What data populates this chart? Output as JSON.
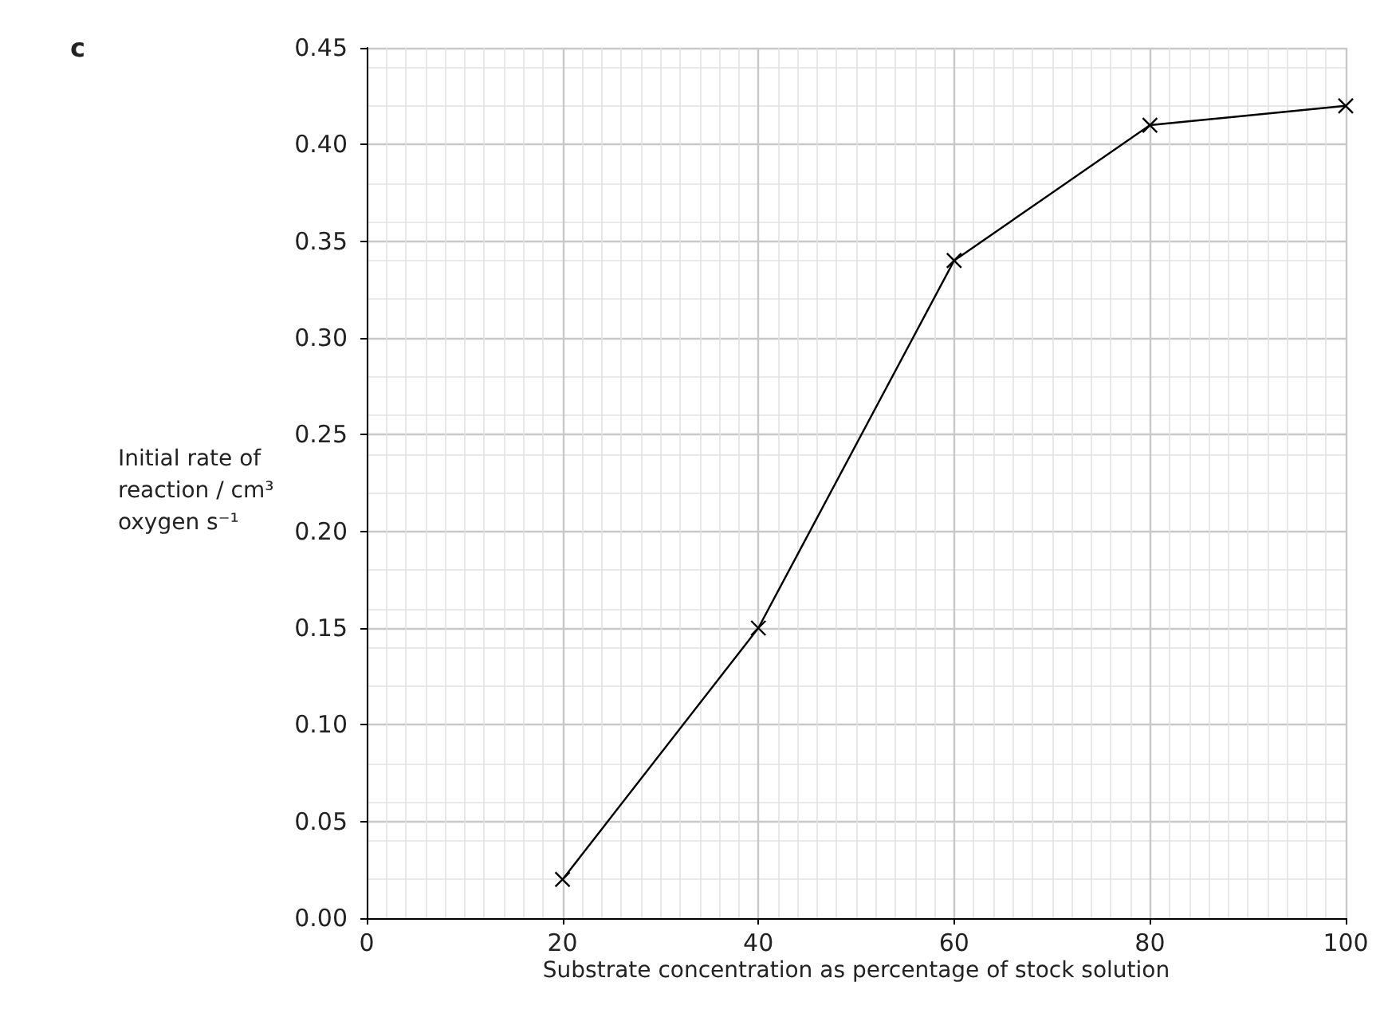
{
  "chart_data": {
    "type": "line",
    "x": [
      20,
      40,
      60,
      80,
      100
    ],
    "series": [
      {
        "color": "#000000",
        "values": [
          0.02,
          0.15,
          0.34,
          0.41,
          0.42
        ]
      }
    ],
    "xlabel": "Substrate concentration as percentage of stock solution",
    "ylabel": "Initial rate of reaction / cm³ oxygen s⁻¹",
    "annotations": [
      "c"
    ],
    "xlim": [
      0,
      100
    ],
    "xticks": [
      0,
      20,
      40,
      60,
      80,
      100
    ],
    "ylim": [
      0,
      0.45
    ],
    "yticks": [
      {
        "value": 0,
        "label": "0.00"
      },
      {
        "value": 0.05,
        "label": "0.05"
      },
      {
        "value": 0.1,
        "label": "0.10"
      },
      {
        "value": 0.15,
        "label": "0.15"
      },
      {
        "value": 0.2,
        "label": "0.20"
      },
      {
        "value": 0.25,
        "label": "0.25"
      },
      {
        "value": 0.3,
        "label": "0.30"
      },
      {
        "value": 0.35,
        "label": "0.35"
      },
      {
        "value": 0.4,
        "label": "0.40"
      },
      {
        "value": 0.45,
        "label": "0.45"
      }
    ],
    "grid": true,
    "marker": "cross",
    "line_style": "solid"
  }
}
